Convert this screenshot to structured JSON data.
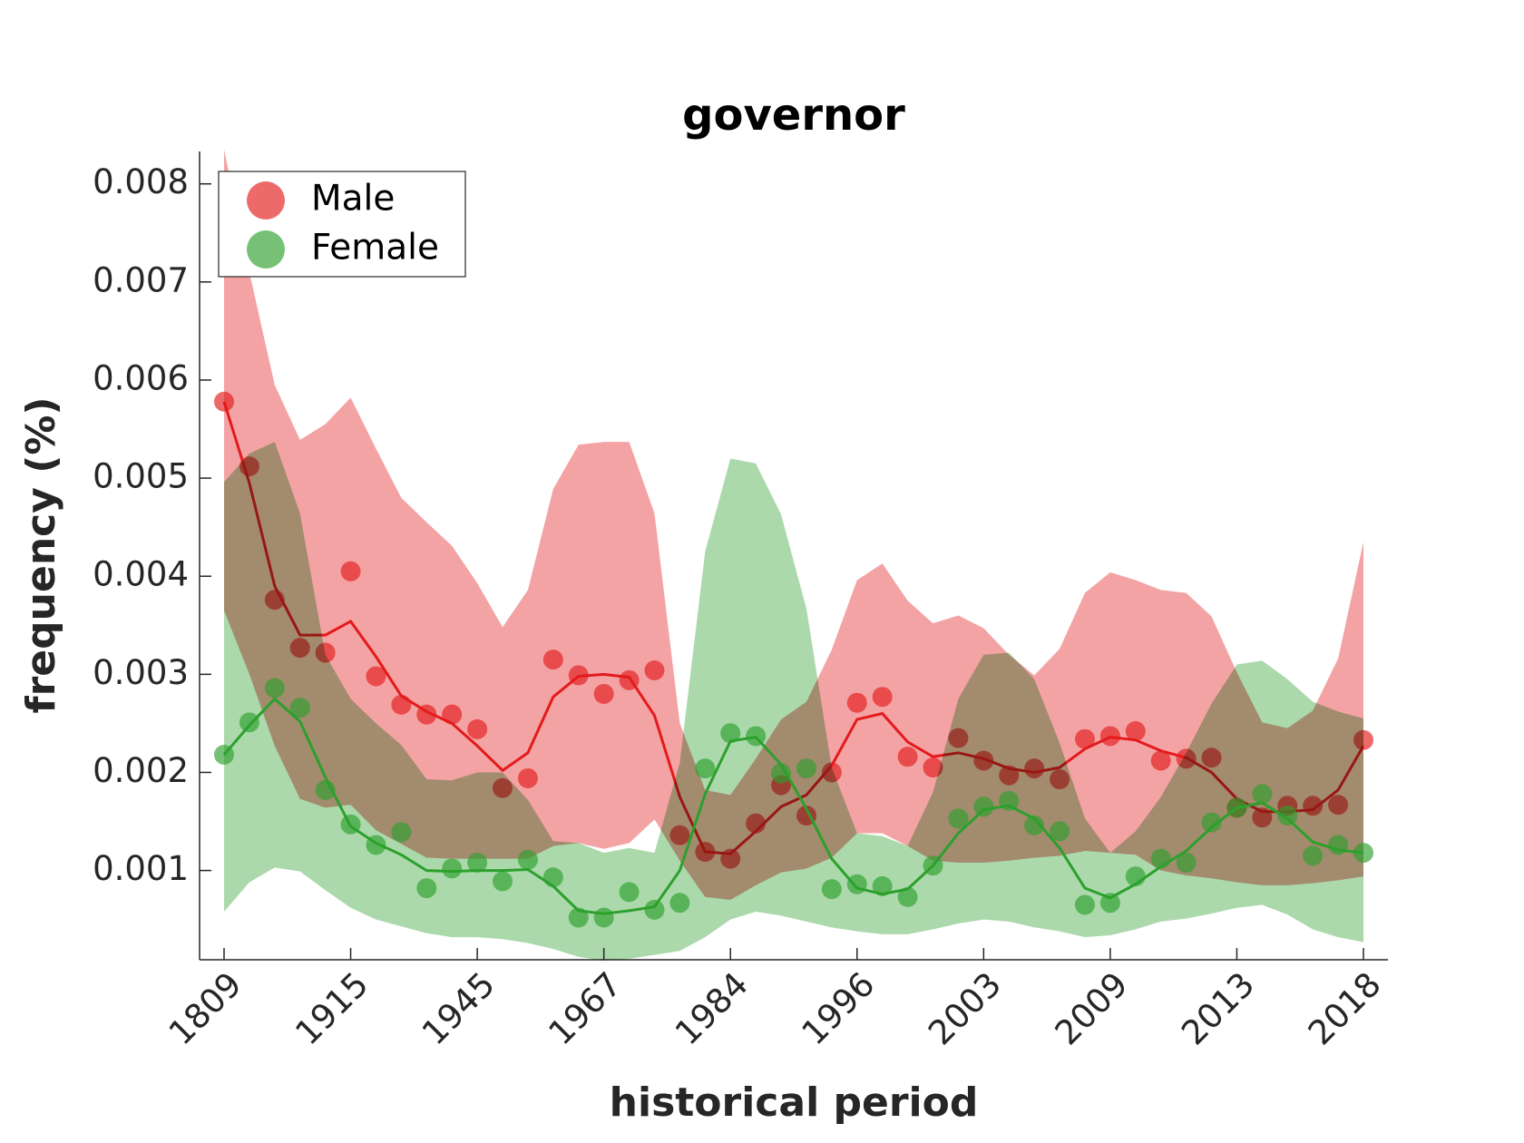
{
  "chart_data": {
    "type": "line",
    "title": "governor",
    "x_label": "historical period",
    "y_label": "frequency (%)",
    "categories": [
      "1809",
      null,
      null,
      null,
      null,
      "1915",
      null,
      null,
      null,
      null,
      "1945",
      null,
      null,
      null,
      null,
      "1967",
      null,
      null,
      null,
      null,
      "1984",
      null,
      null,
      null,
      null,
      "1996",
      null,
      null,
      null,
      null,
      "2003",
      null,
      null,
      null,
      null,
      "2009",
      null,
      null,
      null,
      null,
      "2013",
      null,
      null,
      null,
      null,
      "2018"
    ],
    "ylim": [
      9e-05,
      0.00833
    ],
    "yticks": [
      0.001,
      0.002,
      0.003,
      0.004,
      0.005,
      0.006,
      0.007,
      0.008
    ],
    "legend": "upper left",
    "grid": false,
    "series": [
      {
        "name": "Male",
        "color": "#e41a1c",
        "values": [
          0.00578,
          0.00512,
          0.00376,
          0.00327,
          0.00322,
          0.00405,
          0.00298,
          0.00269,
          0.00259,
          0.00259,
          0.00244,
          0.00184,
          0.00194,
          0.00315,
          0.00299,
          0.0028,
          0.00294,
          0.00304,
          0.00136,
          0.00119,
          0.00112,
          0.00148,
          0.00187,
          0.00156,
          0.002,
          0.00271,
          0.00277,
          0.00216,
          0.00205,
          0.00235,
          0.00212,
          0.00197,
          0.00204,
          0.00193,
          0.00234,
          0.00237,
          0.00242,
          0.00212,
          0.00214,
          0.00215,
          0.00164,
          0.00154,
          0.00166,
          0.00166,
          0.00167,
          0.00233
        ],
        "smooth": [
          0.00578,
          0.00495,
          0.0039,
          0.0034,
          0.0034,
          0.00354,
          0.00318,
          0.00278,
          0.00262,
          0.0025,
          0.00227,
          0.00202,
          0.0022,
          0.00277,
          0.00298,
          0.003,
          0.00297,
          0.00258,
          0.00175,
          0.00119,
          0.00117,
          0.0014,
          0.00165,
          0.00177,
          0.00207,
          0.00254,
          0.0026,
          0.00231,
          0.00216,
          0.0022,
          0.00214,
          0.00204,
          0.002,
          0.00205,
          0.00224,
          0.00236,
          0.00233,
          0.00222,
          0.00215,
          0.002,
          0.00173,
          0.0016,
          0.0016,
          0.00162,
          0.00182,
          0.00227
        ],
        "upper": [
          0.00835,
          0.0071,
          0.00595,
          0.00539,
          0.00555,
          0.00582,
          0.0053,
          0.0048,
          0.00455,
          0.00431,
          0.00393,
          0.00348,
          0.00386,
          0.00489,
          0.00534,
          0.00537,
          0.00537,
          0.00464,
          0.0025,
          0.00182,
          0.00177,
          0.00214,
          0.00254,
          0.00272,
          0.00325,
          0.00396,
          0.00413,
          0.00375,
          0.00352,
          0.0036,
          0.00347,
          0.0032,
          0.00299,
          0.00326,
          0.00383,
          0.00404,
          0.00396,
          0.00386,
          0.00383,
          0.00359,
          0.00302,
          0.00251,
          0.00245,
          0.00263,
          0.00316,
          0.00435
        ],
        "lower": [
          0.00365,
          0.003,
          0.00227,
          0.00173,
          0.00164,
          0.00167,
          0.00141,
          0.00127,
          0.00113,
          0.00112,
          0.00112,
          0.00112,
          0.00112,
          0.00125,
          0.00128,
          0.00122,
          0.00128,
          0.00152,
          0.0011,
          0.00073,
          0.0007,
          0.00085,
          0.00098,
          0.00102,
          0.00113,
          0.00138,
          0.00138,
          0.00125,
          0.0011,
          0.00108,
          0.00108,
          0.0011,
          0.00113,
          0.00115,
          0.0012,
          0.00118,
          0.00116,
          0.001,
          0.00095,
          0.00092,
          0.00088,
          0.00085,
          0.00085,
          0.00087,
          0.0009,
          0.00094
        ]
      },
      {
        "name": "Female",
        "color": "#2ca02c",
        "values": [
          0.00218,
          0.00251,
          0.00286,
          0.00266,
          0.00182,
          0.00147,
          0.00126,
          0.00139,
          0.00082,
          0.00102,
          0.00108,
          0.00089,
          0.00111,
          0.00093,
          0.00052,
          0.00052,
          0.00078,
          0.0006,
          0.00067,
          0.00204,
          0.0024,
          0.00237,
          0.00199,
          0.00204,
          0.00081,
          0.00086,
          0.00084,
          0.00073,
          0.00105,
          0.00153,
          0.00165,
          0.00171,
          0.00146,
          0.0014,
          0.00065,
          0.00067,
          0.00094,
          0.00112,
          0.00108,
          0.00149,
          0.00164,
          0.00178,
          0.00156,
          0.00115,
          0.00126,
          0.00118
        ],
        "smooth": [
          0.00218,
          0.00248,
          0.00275,
          0.00252,
          0.00195,
          0.00145,
          0.00128,
          0.00116,
          0.001,
          0.00099,
          0.001,
          0.001,
          0.00101,
          0.00084,
          0.00059,
          0.00056,
          0.00059,
          0.00063,
          0.001,
          0.00178,
          0.00232,
          0.00236,
          0.00208,
          0.00163,
          0.00112,
          0.00082,
          0.00076,
          0.00081,
          0.00105,
          0.00138,
          0.00162,
          0.00166,
          0.00153,
          0.00123,
          0.00082,
          0.00072,
          0.00086,
          0.00104,
          0.0012,
          0.00144,
          0.00164,
          0.00169,
          0.00153,
          0.00129,
          0.00121,
          0.00118
        ],
        "upper": [
          0.00496,
          0.00525,
          0.00537,
          0.00464,
          0.0032,
          0.00275,
          0.0025,
          0.00228,
          0.00193,
          0.00192,
          0.002,
          0.002,
          0.00172,
          0.0013,
          0.00128,
          0.00118,
          0.00123,
          0.00118,
          0.0021,
          0.00425,
          0.0052,
          0.00515,
          0.00463,
          0.00367,
          0.00205,
          0.00138,
          0.00135,
          0.00125,
          0.0018,
          0.00275,
          0.0032,
          0.00322,
          0.00295,
          0.0023,
          0.00153,
          0.00118,
          0.0014,
          0.00175,
          0.0022,
          0.0027,
          0.0031,
          0.00314,
          0.00295,
          0.00272,
          0.00262,
          0.00255
        ],
        "lower": [
          0.00058,
          0.00088,
          0.00103,
          0.00099,
          0.0008,
          0.00062,
          0.0005,
          0.00043,
          0.00036,
          0.00032,
          0.00032,
          0.0003,
          0.00026,
          0.0002,
          0.00012,
          8e-05,
          0.0001,
          0.00014,
          0.00018,
          0.00032,
          0.0005,
          0.00058,
          0.00054,
          0.00048,
          0.00042,
          0.00038,
          0.00035,
          0.00035,
          0.0004,
          0.00046,
          0.0005,
          0.00048,
          0.00042,
          0.00038,
          0.00032,
          0.00034,
          0.0004,
          0.00048,
          0.00051,
          0.00056,
          0.00062,
          0.00065,
          0.00055,
          0.0004,
          0.00032,
          0.00027
        ]
      }
    ]
  }
}
